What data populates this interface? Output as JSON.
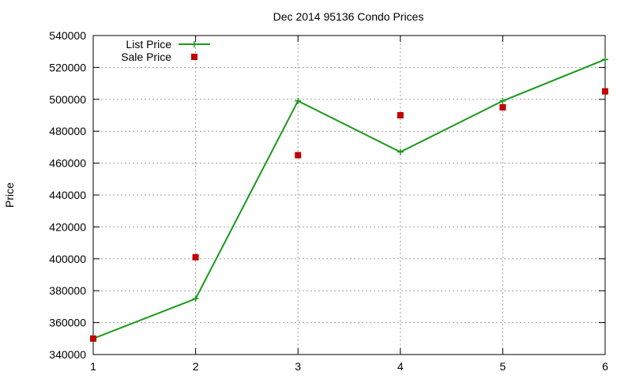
{
  "chart_data": {
    "type": "line",
    "title": "Dec 2014 95136 Condo Prices",
    "xlabel": "",
    "ylabel": "Price",
    "x": [
      1,
      2,
      3,
      4,
      5,
      6
    ],
    "xlim": [
      1,
      6
    ],
    "ylim": [
      340000,
      540000
    ],
    "xticks": [
      "1",
      "2",
      "3",
      "4",
      "5",
      "6"
    ],
    "yticks": [
      "340000",
      "360000",
      "380000",
      "400000",
      "420000",
      "440000",
      "460000",
      "480000",
      "500000",
      "520000",
      "540000"
    ],
    "grid": true,
    "legend_position": "top-left",
    "series": [
      {
        "name": "List Price",
        "style": "line-points",
        "color": "#1a9a1a",
        "values": [
          350000,
          375000,
          499000,
          467000,
          499000,
          525000
        ]
      },
      {
        "name": "Sale Price",
        "style": "points",
        "color": "#c00000",
        "values": [
          350000,
          401000,
          465000,
          490000,
          495000,
          505000
        ]
      }
    ]
  }
}
